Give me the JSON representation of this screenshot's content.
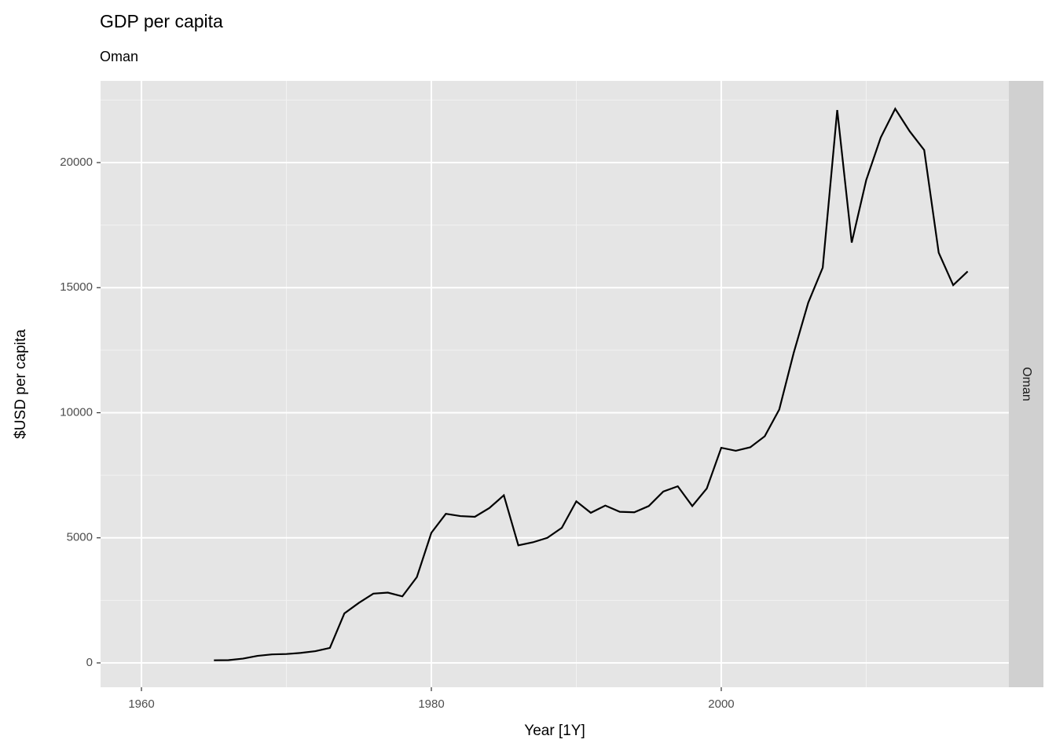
{
  "chart_data": {
    "type": "line",
    "title": "GDP per capita",
    "subtitle": "Oman",
    "strip_label": "Oman",
    "x_label": "Year [1Y]",
    "y_label": "$USD per capita",
    "x": [
      1965,
      1966,
      1967,
      1968,
      1969,
      1970,
      1971,
      1972,
      1973,
      1974,
      1975,
      1976,
      1977,
      1978,
      1979,
      1980,
      1981,
      1982,
      1983,
      1984,
      1985,
      1986,
      1987,
      1988,
      1989,
      1990,
      1991,
      1992,
      1993,
      1994,
      1995,
      1996,
      1997,
      1998,
      1999,
      2000,
      2001,
      2002,
      2003,
      2004,
      2005,
      2006,
      2007,
      2008,
      2009,
      2010,
      2011,
      2012,
      2013,
      2014,
      2015,
      2016,
      2017
    ],
    "series": [
      {
        "name": "Oman",
        "color": "#000000",
        "values": [
          105,
          110,
          170,
          280,
          340,
          355,
          400,
          470,
          600,
          1980,
          2400,
          2770,
          2810,
          2660,
          3430,
          5200,
          5960,
          5870,
          5840,
          6190,
          6700,
          4700,
          4820,
          5000,
          5400,
          6460,
          6000,
          6290,
          6040,
          6020,
          6270,
          6850,
          7060,
          6270,
          6970,
          8600,
          8480,
          8620,
          9060,
          10130,
          12400,
          14400,
          15800,
          22100,
          16800,
          19300,
          21000,
          22150,
          21250,
          20500,
          16400,
          15100,
          15650
        ]
      }
    ],
    "xlim": [
      1957.18,
      2019.84
    ],
    "ylim": [
      -973,
      23265
    ],
    "xticks": [
      1960,
      1980,
      2000
    ],
    "yticks": [
      0,
      5000,
      10000,
      15000,
      20000
    ],
    "grid": true
  }
}
